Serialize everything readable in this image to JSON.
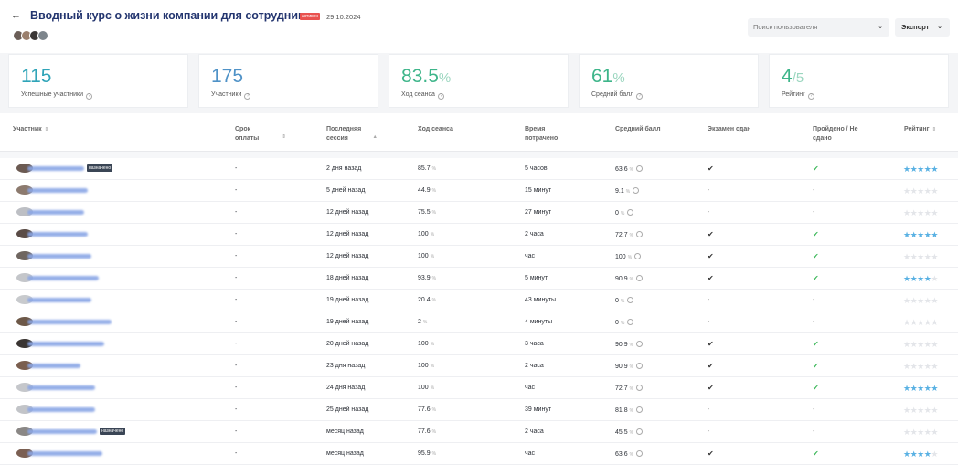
{
  "header": {
    "back_icon": "←",
    "title": "Вводный курс о жизни компании для сотрудников",
    "badge": "активен",
    "date": "29.10.2024",
    "search_placeholder": "Поиск пользователя",
    "export_label": "Экспорт"
  },
  "stats": [
    {
      "value": "115",
      "suffix": "",
      "label": "Успешные участники",
      "tone": "teal"
    },
    {
      "value": "175",
      "suffix": "",
      "label": "Участники",
      "tone": "blue"
    },
    {
      "value": "83.5",
      "suffix": "%",
      "label": "Ход сеанса",
      "tone": "green"
    },
    {
      "value": "61",
      "suffix": "%",
      "label": "Средний балл",
      "tone": "green"
    },
    {
      "value": "4",
      "suffix": "/5",
      "label": "Рейтинг",
      "tone": "green"
    }
  ],
  "table": {
    "columns": [
      {
        "label": "Участник",
        "sort": "⇕"
      },
      {
        "label": "Срок оплаты",
        "sort": "⇕"
      },
      {
        "label": "Последняя сессия",
        "sort": "▲"
      },
      {
        "label": "Ход сеанса",
        "sort": ""
      },
      {
        "label": "Время потрачено",
        "sort": ""
      },
      {
        "label": "Средний балл",
        "sort": ""
      },
      {
        "label": "Экзамен сдан",
        "sort": ""
      },
      {
        "label": "Пройдено / Не сдано",
        "sort": ""
      },
      {
        "label": "Рейтинг",
        "sort": "⇕"
      }
    ],
    "tag_label": "назначено",
    "rows": [
      {
        "tag": true,
        "due": "-",
        "last": "2 дня назад",
        "progress": "85.7",
        "time": "5 часов",
        "score": "63.6",
        "exam": true,
        "passed": true,
        "rating": 5,
        "blur": 62
      },
      {
        "tag": false,
        "due": "-",
        "last": "5 дней назад",
        "progress": "44.9",
        "time": "15 минут",
        "score": "9.1",
        "exam": false,
        "passed": false,
        "rating": 0,
        "blur": 66
      },
      {
        "tag": false,
        "due": "-",
        "last": "12 дней назад",
        "progress": "75.5",
        "time": "27 минут",
        "score": "0",
        "exam": false,
        "passed": false,
        "rating": 0,
        "blur": 62
      },
      {
        "tag": false,
        "due": "-",
        "last": "12 дней назад",
        "progress": "100",
        "time": "2 часа",
        "score": "72.7",
        "exam": true,
        "passed": true,
        "rating": 5,
        "blur": 66
      },
      {
        "tag": false,
        "due": "-",
        "last": "12 дней назад",
        "progress": "100",
        "time": "час",
        "score": "100",
        "exam": true,
        "passed": true,
        "rating": 0,
        "blur": 70
      },
      {
        "tag": false,
        "due": "-",
        "last": "18 дней назад",
        "progress": "93.9",
        "time": "5 минут",
        "score": "90.9",
        "exam": true,
        "passed": true,
        "rating": 4,
        "blur": 78
      },
      {
        "tag": false,
        "due": "-",
        "last": "19 дней назад",
        "progress": "20.4",
        "time": "43 минуты",
        "score": "0",
        "exam": false,
        "passed": false,
        "rating": 0,
        "blur": 70
      },
      {
        "tag": false,
        "due": "-",
        "last": "19 дней назад",
        "progress": "2",
        "time": "4 минуты",
        "score": "0",
        "exam": false,
        "passed": false,
        "rating": 0,
        "blur": 92
      },
      {
        "tag": false,
        "due": "-",
        "last": "20 дней назад",
        "progress": "100",
        "time": "3 часа",
        "score": "90.9",
        "exam": true,
        "passed": true,
        "rating": 0,
        "blur": 84
      },
      {
        "tag": false,
        "due": "-",
        "last": "23 дня назад",
        "progress": "100",
        "time": "2 часа",
        "score": "90.9",
        "exam": true,
        "passed": true,
        "rating": 0,
        "blur": 58
      },
      {
        "tag": false,
        "due": "-",
        "last": "24 дня назад",
        "progress": "100",
        "time": "час",
        "score": "72.7",
        "exam": true,
        "passed": true,
        "rating": 5,
        "blur": 74
      },
      {
        "tag": false,
        "due": "-",
        "last": "25 дней назад",
        "progress": "77.6",
        "time": "39 минут",
        "score": "81.8",
        "exam": false,
        "passed": false,
        "rating": 0,
        "blur": 74
      },
      {
        "tag": true,
        "due": "-",
        "last": "месяц назад",
        "progress": "77.6",
        "time": "2 часа",
        "score": "45.5",
        "exam": false,
        "passed": false,
        "rating": 0,
        "blur": 76
      },
      {
        "tag": false,
        "due": "-",
        "last": "месяц назад",
        "progress": "95.9",
        "time": "час",
        "score": "63.6",
        "exam": true,
        "passed": true,
        "rating": 4,
        "blur": 82
      }
    ]
  },
  "icons": {
    "back": "arrow-left-icon",
    "chevron": "chevron-down-icon",
    "info": "info-icon",
    "check": "check-icon",
    "star": "star-icon"
  },
  "colors": {
    "title": "#23356f",
    "accent_teal": "#2fa4b8",
    "accent_green": "#3eb58a",
    "badge_red": "#e9524f",
    "star": "#59b1e3",
    "check_green": "#3db85a"
  }
}
